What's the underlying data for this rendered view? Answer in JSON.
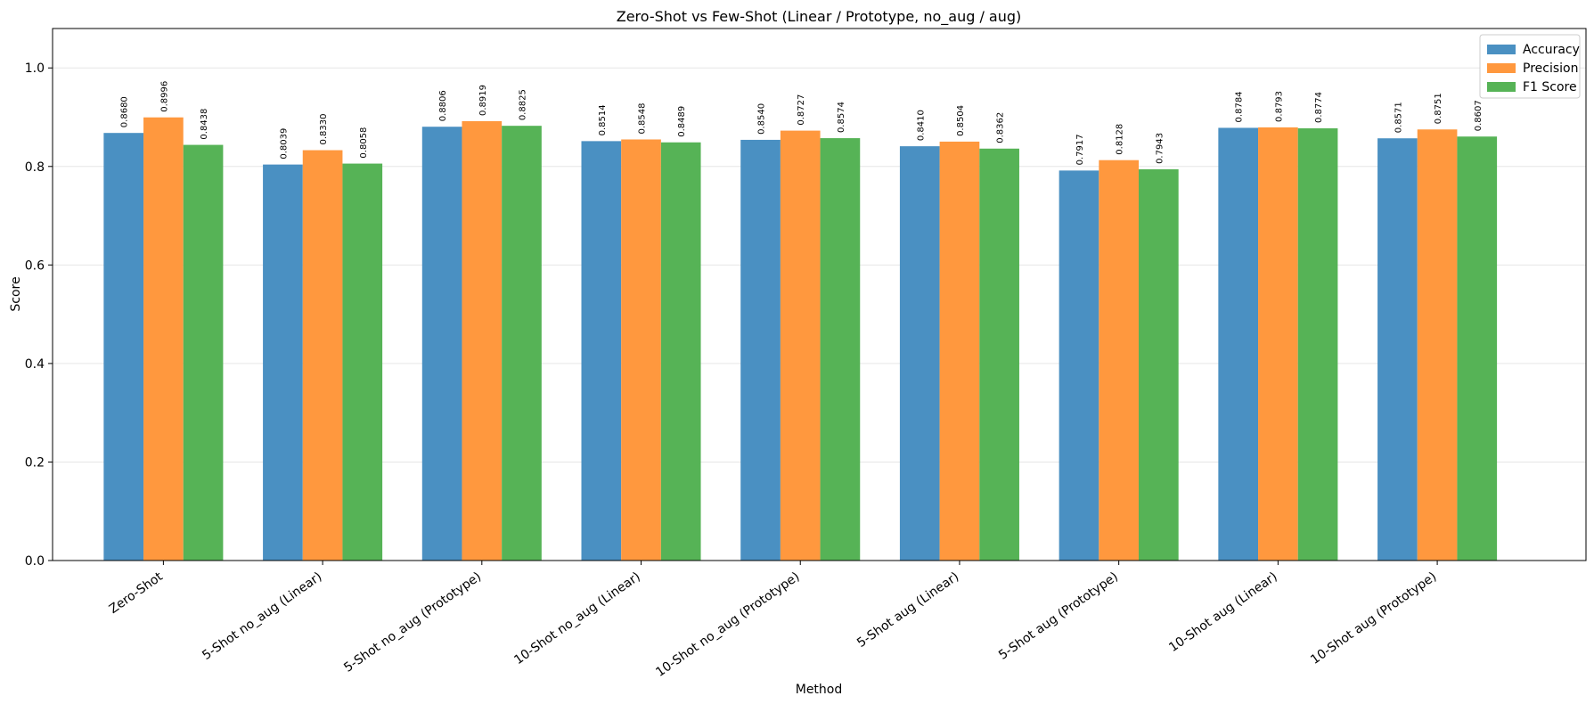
{
  "chart_data": {
    "type": "bar",
    "title": "Zero-Shot vs Few-Shot (Linear / Prototype, no_aug / aug)",
    "x_label": "Method",
    "y_label": "Score",
    "categories": [
      "Zero-Shot",
      "5-Shot no_aug (Linear)",
      "5-Shot no_aug (Prototype)",
      "10-Shot no_aug (Linear)",
      "10-Shot no_aug (Prototype)",
      "5-Shot aug (Linear)",
      "5-Shot aug (Prototype)",
      "10-Shot aug (Linear)",
      "10-Shot aug (Prototype)"
    ],
    "series": [
      {
        "name": "Accuracy",
        "color": "#4a90c2",
        "values": [
          0.868,
          0.8039,
          0.8806,
          0.8514,
          0.854,
          0.841,
          0.7917,
          0.8784,
          0.8571
        ],
        "value_labels": [
          "0.8680",
          "0.8039",
          "0.8806",
          "0.8514",
          "0.8540",
          "0.8410",
          "0.7917",
          "0.8784",
          "0.8571"
        ]
      },
      {
        "name": "Precision",
        "color": "#ff983e",
        "values": [
          0.8996,
          0.833,
          0.8919,
          0.8548,
          0.8727,
          0.8504,
          0.8128,
          0.8793,
          0.8751
        ],
        "value_labels": [
          "0.8996",
          "0.8330",
          "0.8919",
          "0.8548",
          "0.8727",
          "0.8504",
          "0.8128",
          "0.8793",
          "0.8751"
        ]
      },
      {
        "name": "F1 Score",
        "color": "#56b356",
        "values": [
          0.8438,
          0.8058,
          0.8825,
          0.8489,
          0.8574,
          0.8362,
          0.7943,
          0.8774,
          0.8607
        ],
        "value_labels": [
          "0.8438",
          "0.8058",
          "0.8825",
          "0.8489",
          "0.8574",
          "0.8362",
          "0.7943",
          "0.8774",
          "0.8607"
        ]
      }
    ],
    "ylim": [
      0,
      1.08
    ],
    "yticks": [
      {
        "value": 0,
        "label": "0.0"
      },
      0.2,
      0.4,
      0.6,
      0.8,
      {
        "value": 1,
        "label": "1.0"
      }
    ],
    "grid": true,
    "legend": "upper right"
  }
}
